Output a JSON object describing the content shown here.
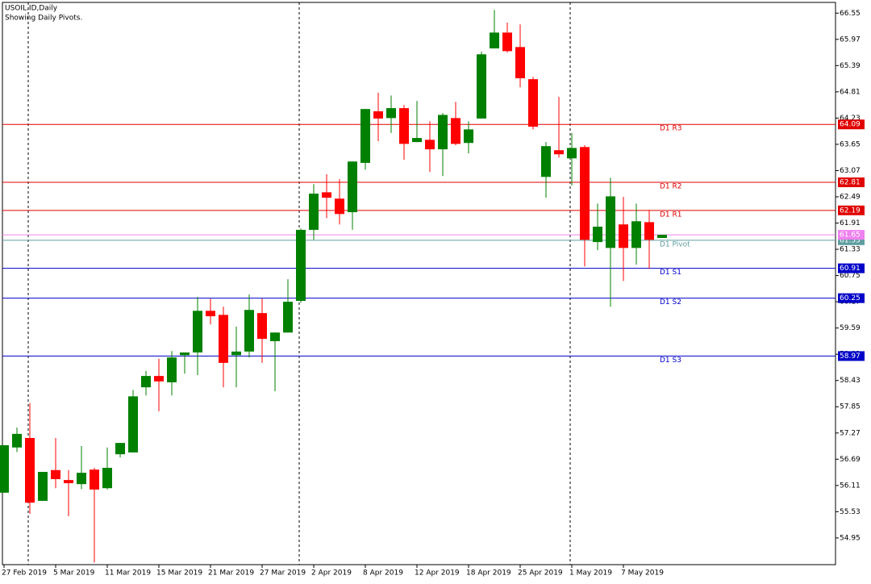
{
  "chart_data": {
    "type": "candlestick",
    "title": "USOIL.ID,Daily",
    "subtitle": "Showing Daily Pivots.",
    "categories": [
      "27 Feb 2019",
      null,
      null,
      null,
      "5 Mar 2019",
      null,
      null,
      null,
      "11 Mar 2019",
      null,
      null,
      null,
      "15 Mar 2019",
      null,
      null,
      null,
      "21 Mar 2019",
      null,
      null,
      null,
      "27 Mar 2019",
      null,
      null,
      null,
      "2 Apr 2019",
      null,
      null,
      null,
      "8 Apr 2019",
      null,
      null,
      null,
      "12 Apr 2019",
      null,
      null,
      null,
      "18 Apr 2019",
      null,
      null,
      null,
      "25 Apr 2019",
      null,
      null,
      null,
      "1 May 2019",
      null,
      null,
      null,
      "7 May 2019",
      null,
      null,
      null
    ],
    "open": [
      55.95,
      56.95,
      57.16,
      55.77,
      56.45,
      56.23,
      56.14,
      56.46,
      56.05,
      56.8,
      56.84,
      58.28,
      58.53,
      58.39,
      58.99,
      59.05,
      59.97,
      59.88,
      58.99,
      59.07,
      59.92,
      59.3,
      59.49,
      60.19,
      61.76,
      62.59,
      62.45,
      62.15,
      63.24,
      64.38,
      64.23,
      64.45,
      63.7,
      63.75,
      63.54,
      64.23,
      63.68,
      64.22,
      65.77,
      66.12,
      65.8,
      65.09,
      62.93,
      63.52,
      63.34,
      63.59,
      61.49,
      61.36,
      61.88,
      61.36,
      61.93,
      61.58
    ],
    "high": [
      57.0,
      57.39,
      57.93,
      56.41,
      57.16,
      56.45,
      56.98,
      56.5,
      56.95,
      57.05,
      58.22,
      58.64,
      58.91,
      59.08,
      59.05,
      60.28,
      60.24,
      60.06,
      59.62,
      60.33,
      60.24,
      59.49,
      60.67,
      61.79,
      62.77,
      62.99,
      62.88,
      63.27,
      64.43,
      64.79,
      64.73,
      64.52,
      64.61,
      64.16,
      64.34,
      64.59,
      64.16,
      65.7,
      66.62,
      66.34,
      66.3,
      65.14,
      63.7,
      64.7,
      63.9,
      63.63,
      62.34,
      62.91,
      62.49,
      62.34,
      62.2,
      61.65
    ],
    "low": [
      55.95,
      56.85,
      55.48,
      55.77,
      56.05,
      55.43,
      56.03,
      54.41,
      56.02,
      56.73,
      56.84,
      58.1,
      57.75,
      58.1,
      58.58,
      58.55,
      59.67,
      58.28,
      58.28,
      58.94,
      58.82,
      58.19,
      59.49,
      60.15,
      61.54,
      62.02,
      61.88,
      61.76,
      63.09,
      63.72,
      63.9,
      63.31,
      63.7,
      63.04,
      62.95,
      63.63,
      63.45,
      64.22,
      65.77,
      65.68,
      64.91,
      63.98,
      62.47,
      63.36,
      62.74,
      60.95,
      61.31,
      60.06,
      60.63,
      60.99,
      60.9,
      61.58
    ],
    "close": [
      57.0,
      57.25,
      55.73,
      56.41,
      56.25,
      56.16,
      56.39,
      56.02,
      56.5,
      57.05,
      58.08,
      58.53,
      58.41,
      58.94,
      59.05,
      59.97,
      59.85,
      58.82,
      59.07,
      59.99,
      59.35,
      59.49,
      60.17,
      61.76,
      62.56,
      62.47,
      62.11,
      63.27,
      64.43,
      64.22,
      64.45,
      63.66,
      63.79,
      63.54,
      64.3,
      63.66,
      63.98,
      65.64,
      66.12,
      65.71,
      65.11,
      64.04,
      63.61,
      63.43,
      63.57,
      61.54,
      61.83,
      62.5,
      61.36,
      61.95,
      61.54,
      61.65
    ],
    "up_color": "#008000",
    "down_color": "#ff0000",
    "ylim": [
      54.36,
      66.84
    ],
    "yticks": [
      66.55,
      65.97,
      65.39,
      64.81,
      64.23,
      63.65,
      63.07,
      62.49,
      61.91,
      61.33,
      60.75,
      60.17,
      59.59,
      59.01,
      58.43,
      57.85,
      57.27,
      56.69,
      56.11,
      55.53,
      54.95
    ],
    "levels": [
      {
        "name": "D1 R3",
        "value": 64.09,
        "color": "#e00000"
      },
      {
        "name": "D1 R2",
        "value": 62.81,
        "color": "#e00000"
      },
      {
        "name": "D1 R1",
        "value": 62.19,
        "color": "#e00000"
      },
      {
        "name": "D1 Pivot",
        "value": 61.53,
        "color": "#5f9ea0"
      },
      {
        "name": "D1 S1",
        "value": 60.91,
        "color": "#0000c8"
      },
      {
        "name": "D1 S2",
        "value": 60.25,
        "color": "#0000c8"
      },
      {
        "name": "D1 S3",
        "value": 58.97,
        "color": "#0000c8"
      }
    ],
    "price_line": {
      "value": 61.65,
      "color": "#ee82ee"
    }
  }
}
